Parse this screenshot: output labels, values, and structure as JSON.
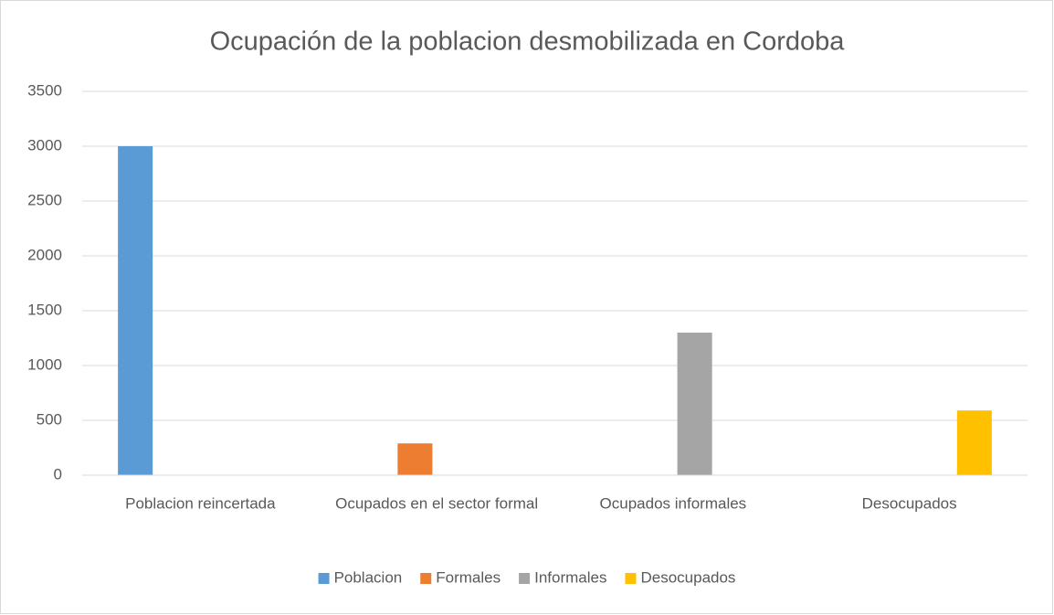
{
  "chart_data": {
    "type": "bar",
    "title": "Ocupación de la poblacion desmobilizada en Cordoba",
    "categories": [
      "Poblacion reincertada",
      "Ocupados en el sector formal",
      "Ocupados informales",
      "Desocupados"
    ],
    "series": [
      {
        "name": "Poblacion",
        "color": "#5b9bd5",
        "values": [
          3000,
          null,
          null,
          null
        ]
      },
      {
        "name": "Formales",
        "color": "#ed7d31",
        "values": [
          null,
          290,
          null,
          null
        ]
      },
      {
        "name": "Informales",
        "color": "#a5a5a5",
        "values": [
          null,
          null,
          1300,
          null
        ]
      },
      {
        "name": "Desocupados",
        "color": "#ffc000",
        "values": [
          null,
          null,
          null,
          590
        ]
      }
    ],
    "ylim": [
      0,
      3500
    ],
    "yticks": [
      0,
      500,
      1000,
      1500,
      2000,
      2500,
      3000,
      3500
    ],
    "grid": true,
    "legend": "bottom"
  }
}
